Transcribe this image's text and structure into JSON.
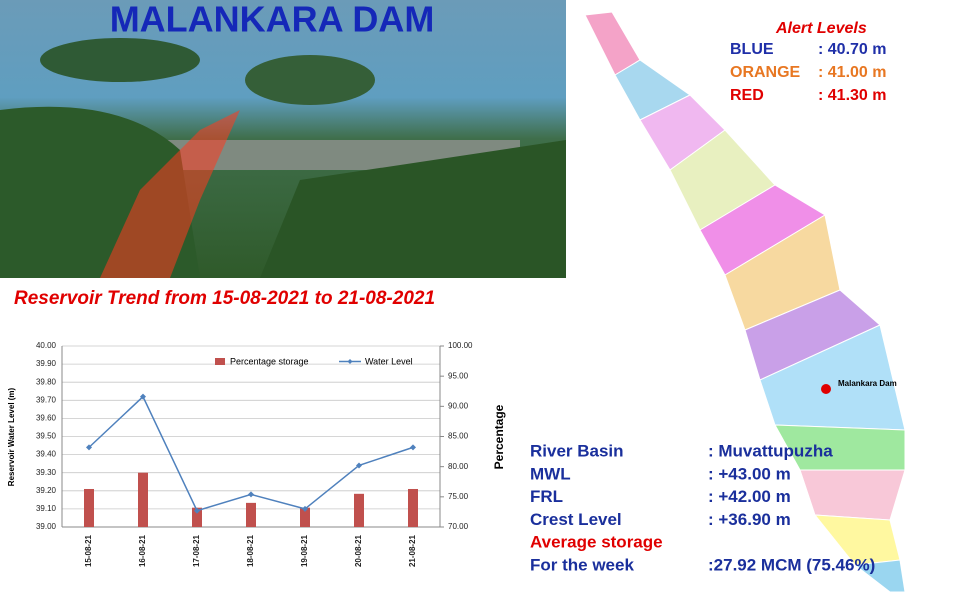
{
  "header": {
    "title": "MALANKARA DAM",
    "subtitle": "Reservoir Trend from 15-08-2021 to 21-08-2021"
  },
  "alert_levels": {
    "title": "Alert Levels",
    "items": [
      {
        "label": "BLUE",
        "value": ": 40.70 m",
        "color": "#1f2fa8"
      },
      {
        "label": "ORANGE",
        "value": ": 41.00 m",
        "color": "#e87722"
      },
      {
        "label": "RED",
        "value": ": 41.30 m",
        "color": "#e00000"
      }
    ]
  },
  "map": {
    "marker_label": "Malankara Dam"
  },
  "info": [
    {
      "label": "River Basin",
      "value": ": Muvattupuzha"
    },
    {
      "label": "MWL",
      "value": ": +43.00 m"
    },
    {
      "label": "FRL",
      "value": ": +42.00 m"
    },
    {
      "label": "Crest Level",
      "value": ": +36.90 m"
    },
    {
      "label": "Average storage"
    },
    {
      "label": "For the week",
      "value": ":27.92 MCM (75.46%)"
    }
  ],
  "chart_data": {
    "type": "combo",
    "y_label": "Reservoir Water Level (m)",
    "y2_label": "Percentage",
    "categories": [
      "15-08-21",
      "16-08-21",
      "17-08-21",
      "18-08-21",
      "19-08-21",
      "20-08-21",
      "21-08-21"
    ],
    "series": [
      {
        "name": "Percentage storage",
        "type": "bar",
        "axis": "y2",
        "color": "#c0504d",
        "values": [
          76.3,
          79.0,
          73.2,
          74.0,
          73.2,
          75.5,
          76.3
        ]
      },
      {
        "name": "Water Level",
        "type": "line",
        "axis": "y",
        "color": "#4f81bd",
        "values": [
          39.44,
          39.72,
          39.09,
          39.18,
          39.1,
          39.34,
          39.44
        ]
      }
    ],
    "ylim": [
      39.0,
      40.0
    ],
    "yticks": [
      {
        "value": 39.0,
        "label": "39.00"
      },
      {
        "value": 39.1,
        "label": "39.10"
      },
      {
        "value": 39.2,
        "label": "39.20"
      },
      {
        "value": 39.3,
        "label": "39.30"
      },
      {
        "value": 39.4,
        "label": "39.40"
      },
      {
        "value": 39.5,
        "label": "39.50"
      },
      {
        "value": 39.6,
        "label": "39.60"
      },
      {
        "value": 39.7,
        "label": "39.70"
      },
      {
        "value": 39.8,
        "label": "39.80"
      },
      {
        "value": 39.9,
        "label": "39.90"
      },
      {
        "value": 40.0,
        "label": "40.00"
      }
    ],
    "y2lim": [
      70,
      100
    ],
    "y2ticks": [
      {
        "value": 70,
        "label": "70.00"
      },
      {
        "value": 75,
        "label": "75.00"
      },
      {
        "value": 80,
        "label": "80.00"
      },
      {
        "value": 85,
        "label": "85.00"
      },
      {
        "value": 90,
        "label": "90.00"
      },
      {
        "value": 95,
        "label": "95.00"
      },
      {
        "value": 100,
        "label": "100.00"
      }
    ],
    "grid": true
  }
}
